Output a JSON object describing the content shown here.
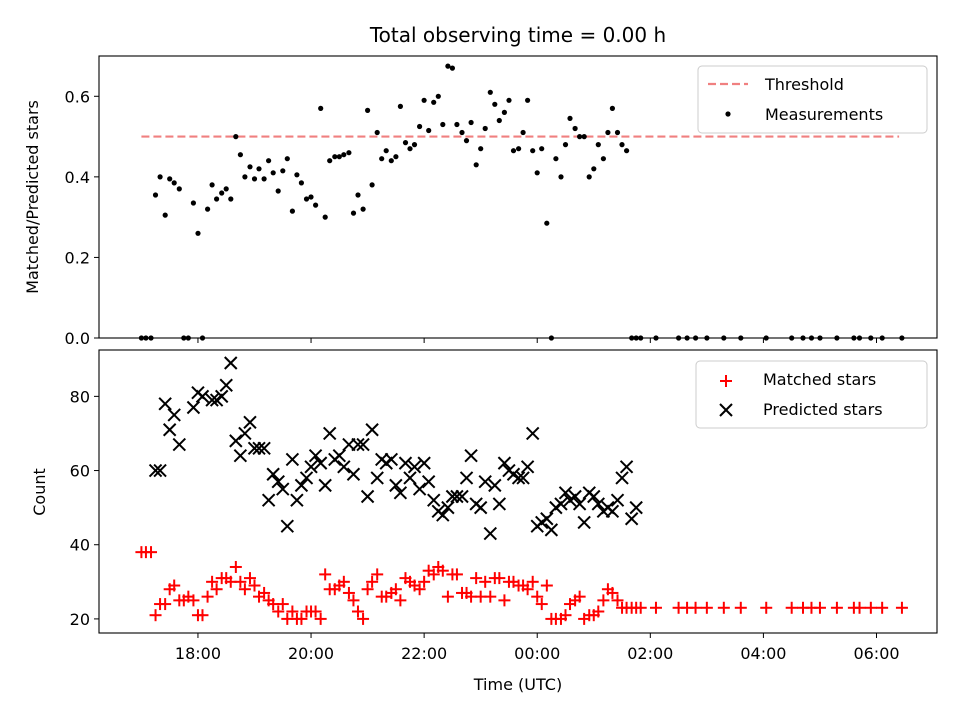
{
  "chart_data": [
    {
      "type": "scatter",
      "title": "Total observing time = 0.00 h",
      "xlabel": "",
      "ylabel": "Matched/Predicted stars",
      "ylim": [
        0,
        0.7
      ],
      "yticks": [
        "0.0",
        "0.2",
        "0.4",
        "0.6"
      ],
      "xlim_hours": [
        16.25,
        31.07
      ],
      "legend": {
        "placement": "top-right"
      },
      "series": [
        {
          "name": "Threshold",
          "kind": "dashed-line",
          "color": "#f08080",
          "x": [
            17.0,
            30.4
          ],
          "y": [
            0.5,
            0.5
          ]
        },
        {
          "name": "Measurements",
          "kind": "points",
          "color": "#000000",
          "x": [
            17.0,
            17.08,
            17.17,
            17.25,
            17.33,
            17.42,
            17.5,
            17.58,
            17.67,
            17.75,
            17.83,
            17.92,
            18.0,
            18.08,
            18.17,
            18.25,
            18.33,
            18.42,
            18.5,
            18.58,
            18.67,
            18.75,
            18.83,
            18.92,
            19.0,
            19.08,
            19.17,
            19.25,
            19.33,
            19.42,
            19.5,
            19.58,
            19.67,
            19.75,
            19.83,
            19.92,
            20.0,
            20.08,
            20.17,
            20.25,
            20.33,
            20.42,
            20.5,
            20.58,
            20.67,
            20.75,
            20.83,
            20.92,
            21.0,
            21.08,
            21.17,
            21.25,
            21.33,
            21.42,
            21.5,
            21.58,
            21.67,
            21.75,
            21.83,
            21.92,
            22.0,
            22.08,
            22.17,
            22.25,
            22.33,
            22.42,
            22.5,
            22.58,
            22.67,
            22.75,
            22.83,
            22.92,
            23.0,
            23.08,
            23.17,
            23.25,
            23.33,
            23.42,
            23.5,
            23.58,
            23.67,
            23.75,
            23.83,
            23.92,
            24.0,
            24.08,
            24.17,
            24.25,
            24.33,
            24.42,
            24.5,
            24.58,
            24.67,
            24.75,
            24.83,
            24.92,
            25.0,
            25.08,
            25.17,
            25.25,
            25.33,
            25.42,
            25.5,
            25.58,
            25.67,
            25.75,
            25.83,
            26.1,
            26.5,
            26.65,
            26.8,
            27.0,
            27.3,
            27.6,
            28.05,
            28.5,
            28.7,
            28.85,
            29.0,
            29.3,
            29.6,
            29.7,
            29.9,
            30.1,
            30.45
          ],
          "y": [
            0.0,
            0.0,
            0.0,
            0.355,
            0.4,
            0.305,
            0.395,
            0.385,
            0.37,
            0.0,
            0.0,
            0.335,
            0.26,
            0.0,
            0.32,
            0.38,
            0.345,
            0.36,
            0.37,
            0.345,
            0.5,
            0.455,
            0.4,
            0.425,
            0.395,
            0.42,
            0.395,
            0.44,
            0.41,
            0.365,
            0.415,
            0.445,
            0.315,
            0.405,
            0.385,
            0.345,
            0.35,
            0.33,
            0.57,
            0.3,
            0.44,
            0.45,
            0.45,
            0.455,
            0.46,
            0.31,
            0.355,
            0.32,
            0.565,
            0.38,
            0.51,
            0.445,
            0.465,
            0.44,
            0.45,
            0.575,
            0.485,
            0.47,
            0.48,
            0.525,
            0.59,
            0.515,
            0.585,
            0.6,
            0.53,
            0.675,
            0.67,
            0.53,
            0.51,
            0.49,
            0.535,
            0.43,
            0.47,
            0.52,
            0.61,
            0.58,
            0.54,
            0.56,
            0.59,
            0.465,
            0.47,
            0.51,
            0.59,
            0.465,
            0.41,
            0.47,
            0.285,
            0.0,
            0.445,
            0.4,
            0.48,
            0.545,
            0.52,
            0.5,
            0.5,
            0.4,
            0.42,
            0.48,
            0.445,
            0.51,
            0.57,
            0.51,
            0.48,
            0.465,
            0.0,
            0.0,
            0.0,
            0.0,
            0.0,
            0.0,
            0.0,
            0.0,
            0.0,
            0.0,
            0.0,
            0.0,
            0.0,
            0.0,
            0.0,
            0.0,
            0.0,
            0.0,
            0.0,
            0.0,
            0.0
          ]
        }
      ]
    },
    {
      "type": "scatter",
      "title": "",
      "xlabel": "Time (UTC)",
      "ylabel": "Count",
      "ylim": [
        16.2,
        92.5
      ],
      "yticks": [
        "20",
        "40",
        "60",
        "80"
      ],
      "xlim_hours": [
        16.25,
        31.07
      ],
      "xticks": [
        "18:00",
        "20:00",
        "22:00",
        "00:00",
        "02:00",
        "04:00",
        "06:00"
      ],
      "legend": {
        "placement": "top-right"
      },
      "series": [
        {
          "name": "Matched stars",
          "marker": "+",
          "color": "#ff0000",
          "x": [
            17.0,
            17.08,
            17.17,
            17.25,
            17.33,
            17.42,
            17.5,
            17.58,
            17.67,
            17.75,
            17.83,
            17.92,
            18.0,
            18.08,
            18.17,
            18.25,
            18.33,
            18.42,
            18.5,
            18.58,
            18.67,
            18.75,
            18.83,
            18.92,
            19.0,
            19.08,
            19.17,
            19.25,
            19.33,
            19.42,
            19.5,
            19.58,
            19.67,
            19.75,
            19.83,
            19.92,
            20.0,
            20.08,
            20.17,
            20.25,
            20.33,
            20.42,
            20.5,
            20.58,
            20.67,
            20.75,
            20.83,
            20.92,
            21.0,
            21.08,
            21.17,
            21.25,
            21.33,
            21.42,
            21.5,
            21.58,
            21.67,
            21.75,
            21.83,
            21.92,
            22.0,
            22.08,
            22.17,
            22.25,
            22.33,
            22.42,
            22.5,
            22.58,
            22.67,
            22.75,
            22.83,
            22.92,
            23.0,
            23.08,
            23.17,
            23.25,
            23.33,
            23.42,
            23.5,
            23.58,
            23.67,
            23.75,
            23.83,
            23.92,
            24.0,
            24.08,
            24.17,
            24.25,
            24.33,
            24.42,
            24.5,
            24.58,
            24.67,
            24.75,
            24.83,
            24.92,
            25.0,
            25.08,
            25.17,
            25.25,
            25.33,
            25.42,
            25.5,
            25.58,
            25.67,
            25.75,
            25.83,
            26.1,
            26.5,
            26.65,
            26.8,
            27.0,
            27.3,
            27.6,
            28.05,
            28.5,
            28.7,
            28.85,
            29.0,
            29.3,
            29.6,
            29.7,
            29.9,
            30.1,
            30.45
          ],
          "y": [
            38,
            38,
            38,
            21,
            24,
            24,
            28,
            29,
            25,
            25,
            26,
            25,
            21,
            21,
            26,
            30,
            28,
            31,
            31,
            30,
            34,
            30,
            28,
            31,
            29,
            26,
            27,
            25,
            24,
            22,
            24,
            20,
            22,
            20,
            20,
            22,
            22,
            22,
            20,
            32,
            28,
            28,
            29,
            30,
            27,
            25,
            22,
            20,
            28,
            30,
            32,
            26,
            26,
            27,
            28,
            25,
            31,
            30,
            29,
            28,
            30,
            33,
            32,
            34,
            33,
            26,
            32,
            32,
            27,
            27,
            26,
            31,
            26,
            30,
            26,
            31,
            31,
            25,
            30,
            30,
            29,
            29,
            28,
            30,
            26,
            24,
            29,
            20,
            20,
            20,
            21,
            24,
            25,
            26,
            20,
            21,
            21,
            22,
            25,
            28,
            27,
            25,
            23,
            23,
            23,
            23,
            23,
            23,
            23,
            23,
            23,
            23,
            23,
            23,
            23,
            23,
            23,
            23,
            23,
            23,
            23,
            23,
            23,
            23,
            23
          ]
        },
        {
          "name": "Predicted stars",
          "marker": "x",
          "color": "#000000",
          "x": [
            17.25,
            17.33,
            17.42,
            17.5,
            17.58,
            17.67,
            17.92,
            18.0,
            18.08,
            18.25,
            18.33,
            18.42,
            18.5,
            18.58,
            18.67,
            18.75,
            18.83,
            18.92,
            19.0,
            19.08,
            19.17,
            19.25,
            19.33,
            19.42,
            19.5,
            19.58,
            19.67,
            19.75,
            19.83,
            19.92,
            20.0,
            20.08,
            20.17,
            20.25,
            20.33,
            20.42,
            20.5,
            20.58,
            20.67,
            20.75,
            20.83,
            20.92,
            21.0,
            21.08,
            21.17,
            21.25,
            21.33,
            21.42,
            21.5,
            21.58,
            21.67,
            21.75,
            21.83,
            21.92,
            22.0,
            22.08,
            22.17,
            22.25,
            22.33,
            22.42,
            22.5,
            22.58,
            22.67,
            22.75,
            22.83,
            22.92,
            23.0,
            23.08,
            23.17,
            23.25,
            23.33,
            23.42,
            23.5,
            23.58,
            23.67,
            23.75,
            23.83,
            23.92,
            24.0,
            24.08,
            24.17,
            24.25,
            24.33,
            24.42,
            24.5,
            24.58,
            24.67,
            24.75,
            24.83,
            24.92,
            25.0,
            25.08,
            25.17,
            25.25,
            25.33,
            25.42,
            25.5,
            25.58,
            25.67,
            25.75
          ],
          "y": [
            60,
            60,
            78,
            71,
            75,
            67,
            77,
            81,
            80,
            79,
            79,
            80,
            83,
            89,
            68,
            64,
            70,
            73,
            66,
            66,
            66,
            52,
            59,
            57,
            55,
            45,
            63,
            52,
            56,
            58,
            61,
            64,
            62,
            56,
            70,
            63,
            64,
            61,
            67,
            59,
            67,
            67,
            53,
            71,
            58,
            63,
            62,
            63,
            56,
            54,
            62,
            58,
            61,
            55,
            62,
            57,
            52,
            49,
            48,
            50,
            53,
            53,
            53,
            58,
            64,
            51,
            50,
            57,
            43,
            56,
            51,
            62,
            60,
            59,
            58,
            58,
            61,
            70,
            45,
            46,
            47,
            44,
            50,
            51,
            54,
            52,
            53,
            51,
            46,
            54,
            53,
            51,
            49,
            50,
            49,
            52,
            58,
            61,
            47,
            50
          ]
        }
      ]
    }
  ]
}
